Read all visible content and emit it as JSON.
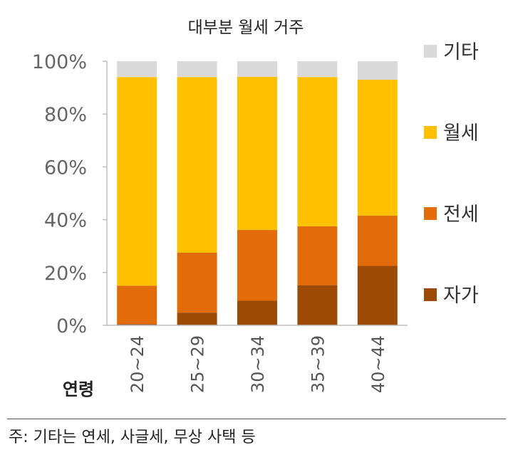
{
  "chart_data": {
    "type": "bar",
    "stacked": true,
    "percent": true,
    "title": "대부분 월세 거주",
    "xlabel": "연령",
    "ylabel": "",
    "ylim": [
      0,
      100
    ],
    "yticks": [
      "0%",
      "20%",
      "40%",
      "60%",
      "80%",
      "100%"
    ],
    "categories": [
      "20~24",
      "25~29",
      "30~34",
      "35~39",
      "40~44"
    ],
    "series": [
      {
        "name": "자가",
        "color": "#9C4A06",
        "values": [
          0.5,
          4.8,
          9.3,
          15.2,
          22.5
        ]
      },
      {
        "name": "전세",
        "color": "#E36C0A",
        "values": [
          14.5,
          22.7,
          26.8,
          22.3,
          19.0
        ]
      },
      {
        "name": "월세",
        "color": "#FFC000",
        "values": [
          79.0,
          66.5,
          58.0,
          56.5,
          51.5
        ]
      },
      {
        "name": "기타",
        "color": "#D9D9D9",
        "values": [
          6.0,
          6.0,
          5.9,
          6.0,
          7.0
        ]
      }
    ],
    "legend_position": "right",
    "grid": false
  },
  "note": "주: 기타는 연세, 사글세, 무상 사택 등"
}
